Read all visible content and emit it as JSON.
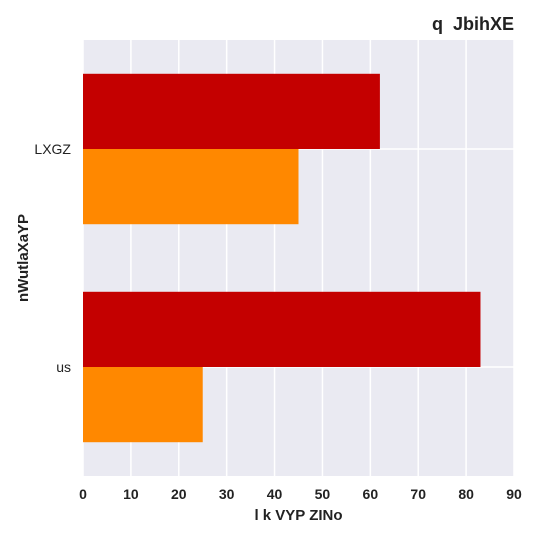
{
  "chart_data": {
    "type": "bar",
    "orientation": "horizontal",
    "title": "q  JbihXE",
    "xlabel": "l k VYP ZINo",
    "ylabel": "nWutlaXaYP",
    "categories": [
      "LXGZ",
      "us"
    ],
    "series": [
      {
        "color": "#c40000",
        "values": [
          62,
          83
        ]
      },
      {
        "color": "#ff8800",
        "values": [
          45,
          25
        ]
      }
    ],
    "xlim": [
      0,
      90
    ],
    "xticks": [
      0,
      10,
      20,
      30,
      40,
      50,
      60,
      70,
      80,
      90
    ],
    "xtick_labels": [
      "0",
      "10",
      "20",
      "30",
      "40",
      "50",
      "60",
      "70",
      "80",
      "90"
    ],
    "grid": true,
    "legend": "none",
    "background_color": "#eaeaf2",
    "grid_color": "#ffffff"
  }
}
